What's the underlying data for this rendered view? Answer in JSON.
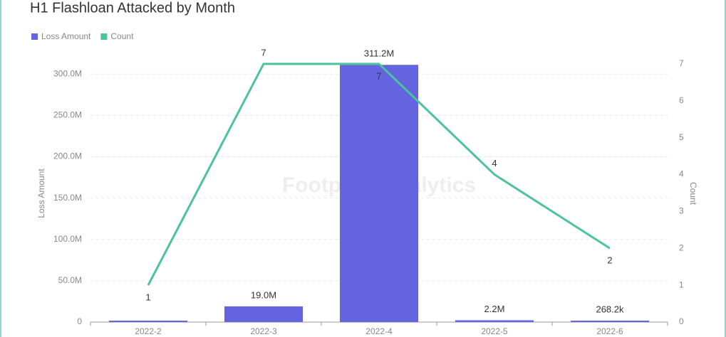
{
  "chart_data": {
    "type": "bar-line",
    "title": "H1 Flashloan Attacked by Month",
    "watermark": "Footprint Analytics",
    "ylabel": "Loss Amount",
    "y2label": "Count",
    "categories": [
      "2022-2",
      "2022-3",
      "2022-4",
      "2022-5",
      "2022-6"
    ],
    "series": [
      {
        "name": "Loss Amount",
        "color": "#6464e0",
        "kind": "bar",
        "values": [
          800000,
          19000000,
          311200000,
          2200000,
          268200
        ],
        "value_labels": [
          null,
          "19.0M",
          "311.2M",
          "2.2M",
          "268.2k"
        ]
      },
      {
        "name": "Count",
        "color": "#4cc39a",
        "kind": "line",
        "axis": "y2",
        "values": [
          1,
          7,
          7,
          4,
          2
        ]
      }
    ],
    "ylim": [
      0,
      320000000
    ],
    "yticks": [
      0,
      {
        "value": 50000000,
        "label": "50.0M"
      },
      {
        "value": 100000000,
        "label": "100.0M"
      },
      {
        "value": 150000000,
        "label": "150.0M"
      },
      {
        "value": 200000000,
        "label": "200.0M"
      },
      {
        "value": 250000000,
        "label": "250.0M"
      },
      {
        "value": 300000000,
        "label": "300.0M"
      }
    ],
    "y2lim": [
      0,
      7.17
    ],
    "y2ticks": [
      0,
      1,
      2,
      3,
      4,
      5,
      6,
      7
    ],
    "grid": true
  }
}
